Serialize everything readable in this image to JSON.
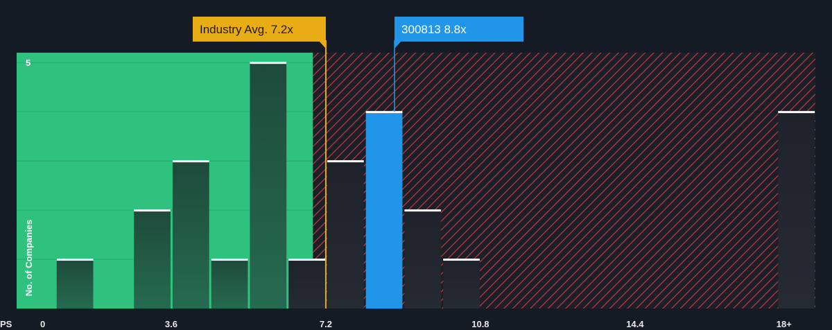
{
  "chart_data": {
    "type": "bar",
    "xlabel": "PS",
    "ylabel": "No. of Companies",
    "x_ticks": [
      {
        "value": 0,
        "label": "0"
      },
      {
        "value": 3.6,
        "label": "3.6"
      },
      {
        "value": 7.2,
        "label": "7.2"
      },
      {
        "value": 10.8,
        "label": "10.8"
      },
      {
        "value": 14.4,
        "label": "14.4"
      },
      {
        "value": 18,
        "label": "18+"
      }
    ],
    "y_ticks": [
      {
        "value": 5,
        "label": "5"
      }
    ],
    "xlim": [
      0,
      18.6
    ],
    "ylim": [
      0,
      5.2
    ],
    "grid": true,
    "bin_width": 0.9,
    "bins": [
      {
        "x": 1.8,
        "count": 1
      },
      {
        "x": 3.6,
        "count": 2
      },
      {
        "x": 4.5,
        "count": 3
      },
      {
        "x": 5.4,
        "count": 1
      },
      {
        "x": 6.3,
        "count": 5
      },
      {
        "x": 7.2,
        "count": 1
      },
      {
        "x": 8.1,
        "count": 3
      },
      {
        "x": 9.0,
        "count": 4,
        "highlight": true
      },
      {
        "x": 9.9,
        "count": 2
      },
      {
        "x": 10.8,
        "count": 1
      },
      {
        "x": 18.6,
        "count": 4
      }
    ],
    "fair_zone_max": 6.9,
    "industry_avg": {
      "value": 7.2,
      "label": "Industry Avg. 7.2x"
    },
    "company": {
      "value": 8.8,
      "label": "300813 8.8x"
    },
    "colors": {
      "background": "#151b24",
      "fair_zone": "#2ec27e",
      "overvalued_hatch": "#c23a42",
      "highlight_bar": "#2196e8",
      "industry_avg": "#e8ac14",
      "bar_cap": "#ffffff"
    }
  }
}
